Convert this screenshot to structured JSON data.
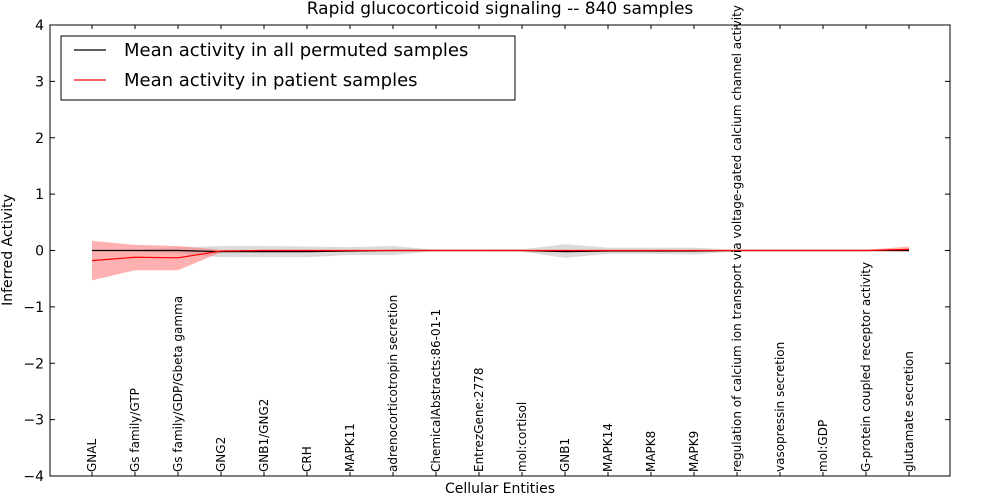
{
  "chart_data": {
    "type": "line",
    "title": "Rapid glucocorticoid signaling -- 840 samples",
    "xlabel": "Cellular Entities",
    "ylabel": "Inferred Activity",
    "ylim": [
      -4,
      4
    ],
    "yticks": [
      "4",
      "3",
      "2",
      "1",
      "0",
      "−1",
      "−2",
      "−3",
      "−4"
    ],
    "ytick_values": [
      4,
      3,
      2,
      1,
      0,
      -1,
      -2,
      -3,
      -4
    ],
    "categories": [
      "GNAL",
      "Gs family/GTP",
      "Gs family/GDP/Gbeta gamma",
      "GNG2",
      "GNB1/GNG2",
      "CRH",
      "MAPK11",
      "adrenocorticotropin secretion",
      "ChemicalAbstracts:86-01-1",
      "EntrezGene:2778",
      "mol:cortisol",
      "GNB1",
      "MAPK14",
      "MAPK8",
      "MAPK9",
      "regulation of calcium ion transport via voltage-gated calcium channel activity",
      "vasopressin secretion",
      "mol:GDP",
      "G-protein coupled receptor activity",
      "glutamate secretion"
    ],
    "series": [
      {
        "name": "Mean activity in all permuted samples",
        "color": "#000000",
        "band_color": "#b0b0b0",
        "values": [
          0.0,
          0.0,
          0.0,
          -0.02,
          -0.02,
          -0.02,
          -0.01,
          0.0,
          0.0,
          0.0,
          0.0,
          -0.02,
          -0.01,
          -0.01,
          -0.01,
          0.0,
          0.0,
          0.0,
          0.0,
          0.0
        ],
        "lower": [
          -0.01,
          -0.02,
          -0.05,
          -0.12,
          -0.12,
          -0.12,
          -0.08,
          -0.08,
          -0.01,
          -0.01,
          -0.02,
          -0.13,
          -0.06,
          -0.06,
          -0.07,
          -0.01,
          -0.01,
          -0.01,
          -0.01,
          -0.01
        ],
        "upper": [
          0.01,
          0.02,
          0.05,
          0.08,
          0.08,
          0.07,
          0.06,
          0.08,
          0.01,
          0.01,
          0.02,
          0.11,
          0.05,
          0.05,
          0.05,
          0.01,
          0.01,
          0.01,
          0.01,
          0.01
        ]
      },
      {
        "name": "Mean activity in patient samples",
        "color": "#ff0000",
        "band_color": "#ff7070",
        "values": [
          -0.18,
          -0.12,
          -0.13,
          -0.01,
          0.0,
          0.0,
          0.0,
          0.0,
          0.0,
          0.0,
          0.0,
          0.0,
          0.0,
          0.0,
          0.0,
          0.0,
          0.0,
          0.0,
          0.0,
          0.02
        ],
        "lower": [
          -0.53,
          -0.35,
          -0.35,
          -0.03,
          -0.01,
          -0.01,
          -0.01,
          -0.01,
          -0.01,
          -0.01,
          -0.01,
          -0.01,
          -0.01,
          -0.01,
          -0.01,
          -0.01,
          -0.01,
          -0.01,
          -0.01,
          -0.02
        ],
        "upper": [
          0.17,
          0.1,
          0.08,
          0.01,
          0.01,
          0.01,
          0.01,
          0.01,
          0.01,
          0.01,
          0.01,
          0.01,
          0.01,
          0.01,
          0.01,
          0.01,
          0.01,
          0.01,
          0.01,
          0.07
        ]
      }
    ],
    "legend_position": "top-left"
  }
}
